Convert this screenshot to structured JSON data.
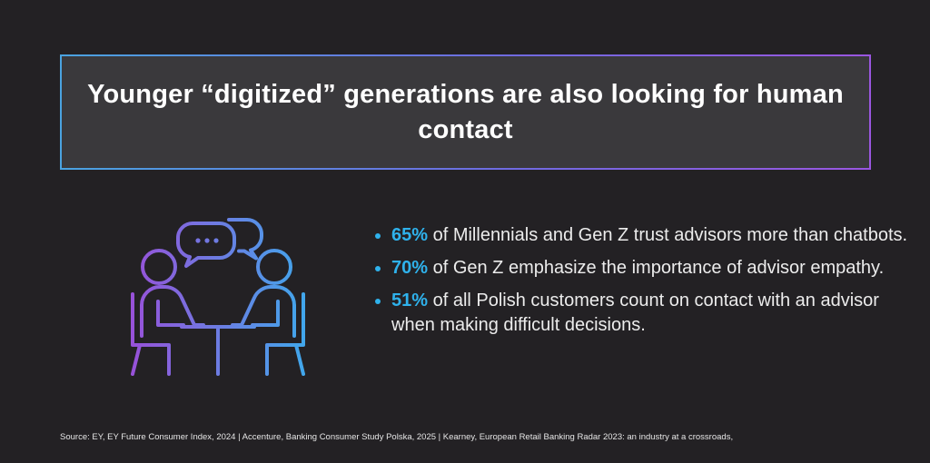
{
  "title": "Younger “digitized” generations are also looking for human contact",
  "illustration": {
    "icon": "two-people-talking-at-table-icon",
    "gradient_colors": [
      "#9a4fd8",
      "#3fa9ec"
    ]
  },
  "colors": {
    "background": "#232124",
    "title_box": "#3a393c",
    "accent": "#2fb2ec"
  },
  "bullets": [
    {
      "pct": "65%",
      "text": " of Millennials and Gen Z trust advisors more than chatbots."
    },
    {
      "pct": "70%",
      "text": " of Gen Z emphasize the importance of advisor empathy."
    },
    {
      "pct": "51%",
      "text": " of all Polish customers count on contact with an advisor when making difficult decisions."
    }
  ],
  "source": "Source: EY, EY Future Consumer Index, 2024 | Accenture, Banking Consumer Study Polska, 2025 | Kearney, European Retail Banking Radar 2023: an industry at a crossroads,"
}
